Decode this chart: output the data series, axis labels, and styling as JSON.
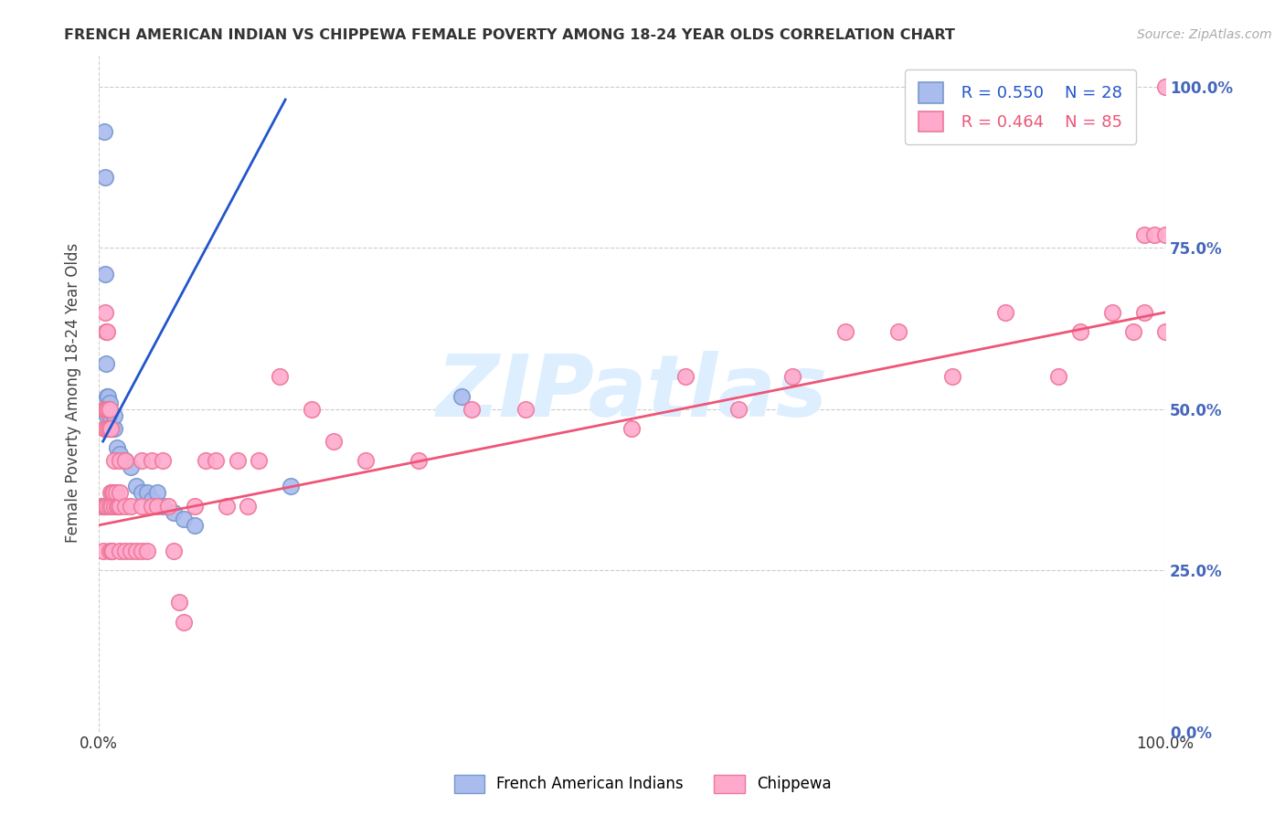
{
  "title": "FRENCH AMERICAN INDIAN VS CHIPPEWA FEMALE POVERTY AMONG 18-24 YEAR OLDS CORRELATION CHART",
  "source": "Source: ZipAtlas.com",
  "ylabel": "Female Poverty Among 18-24 Year Olds",
  "ytick_labels": [
    "0.0%",
    "25.0%",
    "50.0%",
    "75.0%",
    "100.0%"
  ],
  "ytick_values": [
    0.0,
    0.25,
    0.5,
    0.75,
    1.0
  ],
  "xtick_labels": [
    "0.0%",
    "100.0%"
  ],
  "xtick_values": [
    0.0,
    1.0
  ],
  "legend_blue_r": "R = 0.550",
  "legend_blue_n": "N = 28",
  "legend_pink_r": "R = 0.464",
  "legend_pink_n": "N = 85",
  "legend_blue_label": "French American Indians",
  "legend_pink_label": "Chippewa",
  "blue_marker_color": "#AABBEE",
  "pink_marker_color": "#FFAACC",
  "blue_edge_color": "#7799CC",
  "pink_edge_color": "#EE7799",
  "blue_line_color": "#2255CC",
  "pink_line_color": "#EE5577",
  "right_axis_color": "#4466BB",
  "title_color": "#333333",
  "source_color": "#AAAAAA",
  "watermark_text": "ZIPatlas",
  "watermark_color": "#DDEEFF",
  "blue_scatter_x": [
    0.005,
    0.006,
    0.006,
    0.007,
    0.008,
    0.008,
    0.009,
    0.01,
    0.01,
    0.012,
    0.013,
    0.015,
    0.015,
    0.017,
    0.02,
    0.025,
    0.03,
    0.035,
    0.04,
    0.045,
    0.05,
    0.055,
    0.06,
    0.07,
    0.08,
    0.09,
    0.18,
    0.34
  ],
  "blue_scatter_y": [
    0.93,
    0.86,
    0.71,
    0.57,
    0.49,
    0.52,
    0.52,
    0.49,
    0.51,
    0.47,
    0.47,
    0.47,
    0.49,
    0.44,
    0.43,
    0.42,
    0.41,
    0.38,
    0.37,
    0.37,
    0.36,
    0.37,
    0.35,
    0.34,
    0.33,
    0.32,
    0.38,
    0.52
  ],
  "pink_scatter_x": [
    0.003,
    0.004,
    0.005,
    0.005,
    0.005,
    0.006,
    0.006,
    0.006,
    0.007,
    0.007,
    0.008,
    0.008,
    0.008,
    0.009,
    0.009,
    0.01,
    0.01,
    0.01,
    0.01,
    0.011,
    0.011,
    0.012,
    0.012,
    0.013,
    0.013,
    0.014,
    0.015,
    0.015,
    0.016,
    0.017,
    0.018,
    0.02,
    0.02,
    0.02,
    0.02,
    0.025,
    0.025,
    0.025,
    0.03,
    0.03,
    0.035,
    0.04,
    0.04,
    0.04,
    0.045,
    0.05,
    0.05,
    0.055,
    0.06,
    0.065,
    0.07,
    0.075,
    0.08,
    0.09,
    0.1,
    0.11,
    0.12,
    0.13,
    0.14,
    0.15,
    0.17,
    0.2,
    0.22,
    0.25,
    0.3,
    0.35,
    0.4,
    0.5,
    0.55,
    0.6,
    0.65,
    0.7,
    0.75,
    0.8,
    0.85,
    0.9,
    0.92,
    0.95,
    0.97,
    0.98,
    0.98,
    0.99,
    1.0,
    1.0,
    1.0
  ],
  "pink_scatter_y": [
    0.35,
    0.28,
    0.5,
    0.47,
    0.35,
    0.65,
    0.5,
    0.35,
    0.62,
    0.47,
    0.62,
    0.5,
    0.35,
    0.5,
    0.47,
    0.5,
    0.47,
    0.35,
    0.28,
    0.47,
    0.37,
    0.35,
    0.28,
    0.37,
    0.28,
    0.37,
    0.42,
    0.35,
    0.37,
    0.35,
    0.35,
    0.28,
    0.35,
    0.37,
    0.42,
    0.28,
    0.35,
    0.42,
    0.28,
    0.35,
    0.28,
    0.28,
    0.35,
    0.42,
    0.28,
    0.35,
    0.42,
    0.35,
    0.42,
    0.35,
    0.28,
    0.2,
    0.17,
    0.35,
    0.42,
    0.42,
    0.35,
    0.42,
    0.35,
    0.42,
    0.55,
    0.5,
    0.45,
    0.42,
    0.42,
    0.5,
    0.5,
    0.47,
    0.55,
    0.5,
    0.55,
    0.62,
    0.62,
    0.55,
    0.65,
    0.55,
    0.62,
    0.65,
    0.62,
    0.65,
    0.77,
    0.77,
    0.62,
    0.77,
    1.0
  ],
  "blue_line_x": [
    0.004,
    0.175
  ],
  "blue_line_y": [
    0.45,
    0.98
  ],
  "pink_line_x": [
    0.0,
    1.0
  ],
  "pink_line_y": [
    0.32,
    0.65
  ],
  "xlim": [
    0.0,
    1.0
  ],
  "ylim": [
    0.0,
    1.05
  ]
}
